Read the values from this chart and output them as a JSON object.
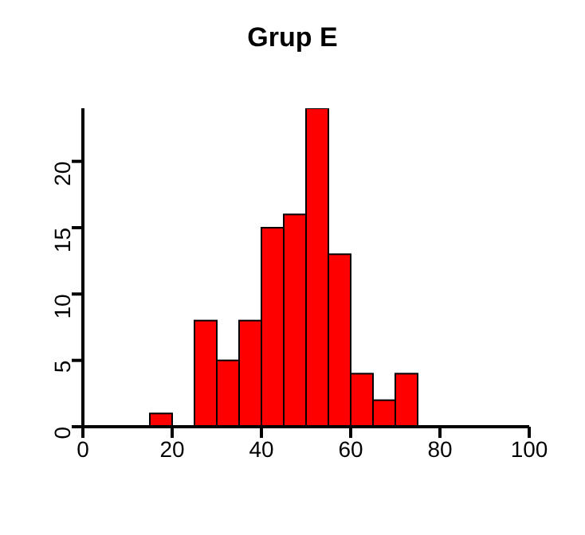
{
  "chart_data": {
    "type": "histogram",
    "title": "Grup E",
    "bins": [
      15,
      20,
      25,
      30,
      35,
      40,
      45,
      50,
      55,
      60,
      65,
      70,
      75
    ],
    "values": [
      1,
      0,
      8,
      5,
      8,
      15,
      16,
      24,
      13,
      4,
      2,
      4
    ],
    "color": "#ff0000",
    "xlim": [
      0,
      100
    ],
    "xticks": [
      0,
      20,
      40,
      60,
      80,
      100
    ],
    "ylim": [
      0,
      24
    ],
    "yticks": [
      0,
      5,
      10,
      15,
      20
    ]
  }
}
